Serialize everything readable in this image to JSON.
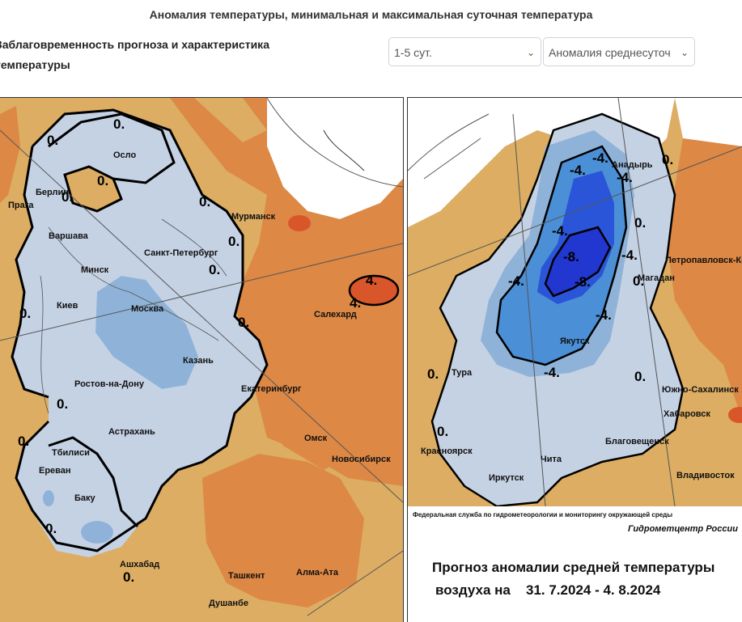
{
  "page_title": "Аномалия температуры, минимальная и максимальная суточная температура",
  "caption": {
    "line1": "Заблаговременность прогноза и характеристика",
    "line2": "температуры"
  },
  "selects": {
    "lead_time": "1-5 сут.",
    "characteristic": "Аномалия среднесуточ"
  },
  "colors": {
    "cold_light": "#c5d2e4",
    "cold_mid": "#8fb3d8",
    "cold_blue": "#4b8fd6",
    "cold_deep": "#2a55d8",
    "cold_deepest": "#2236d0",
    "warm_light": "#dcad62",
    "warm_mid": "#dd8845",
    "warm_deep": "#d9562b"
  },
  "left_map": {
    "cities": [
      "Осло",
      "Берлин",
      "Прага",
      "Варшава",
      "Минск",
      "Санкт-Петербург",
      "Мурманск",
      "Киев",
      "Москва",
      "Казань",
      "Салехард",
      "Ростов-на-Дону",
      "Екатеринбург",
      "Астрахань",
      "Тбилиси",
      "Ереван",
      "Омск",
      "Новосибирск",
      "Баку",
      "Ашхабад",
      "Ташкент",
      "Алма-Ата",
      "Душанбе"
    ],
    "isolines": [
      "0.",
      "0.",
      "0.",
      "0.",
      "0.",
      "0.",
      "0.",
      "0.",
      "0.",
      "0.",
      "0.",
      "0.",
      "0.",
      "4.",
      "4."
    ]
  },
  "right_map": {
    "cities": [
      "Анадырь",
      "Петропавловск-Камчатский",
      "Магадан",
      "Якутск",
      "Тура",
      "Южно-Сахалинск",
      "Хабаровск",
      "Благовещенск",
      "Красноярск",
      "Чита",
      "Иркутск",
      "Владивосток"
    ],
    "isolines": [
      "0.",
      "0.",
      "0.",
      "0.",
      "0.",
      "0.",
      "-4.",
      "-4.",
      "-4.",
      "-4.",
      "-4.",
      "-4.",
      "-4.",
      "-4.",
      "-8.",
      "-8."
    ],
    "agency": "Федеральная служба по гидрометеорологии и мониторингу окружающей среды",
    "center": "Гидрометцентр России",
    "forecast_title": "Прогноз аномалии средней температуры",
    "forecast_prefix": "воздуха на",
    "forecast_dates": "31. 7.2024 -  4. 8.2024"
  }
}
